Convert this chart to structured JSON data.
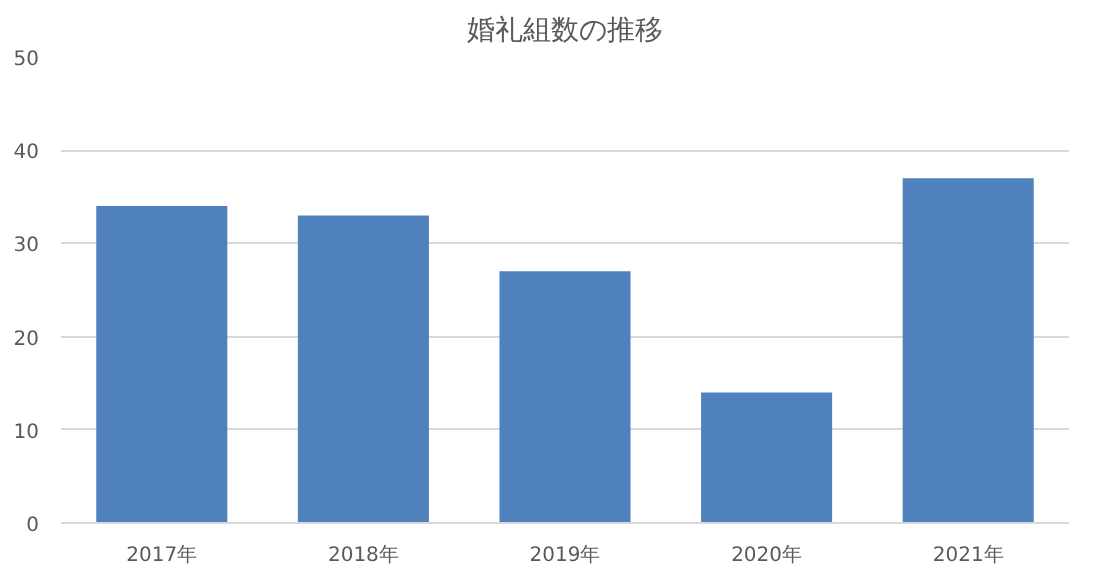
{
  "chart_data": {
    "type": "bar",
    "title": "婚礼組数の推移",
    "categories": [
      "2017年",
      "2018年",
      "2019年",
      "2020年",
      "2021年"
    ],
    "values": [
      34,
      33,
      27,
      14,
      37
    ],
    "color": "#4f81bd",
    "ylim": [
      0,
      50
    ],
    "yticks": [
      0,
      10,
      20,
      30,
      40,
      50
    ],
    "grid": "y"
  }
}
